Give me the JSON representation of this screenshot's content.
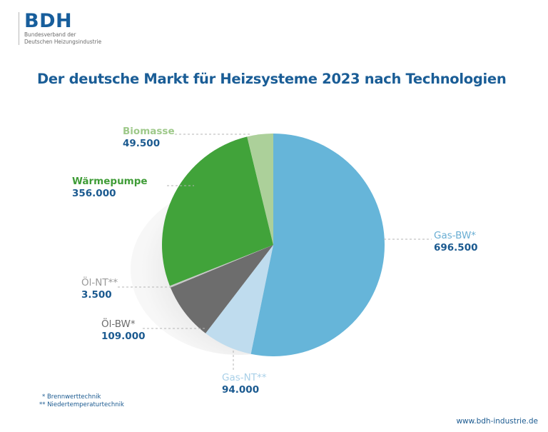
{
  "logo": {
    "mark": "BDH",
    "line1": "Bundesverband der",
    "line2": "Deutschen Heizungsindustrie"
  },
  "title": "Der deutsche Markt für Heizsysteme 2023 nach Technologien",
  "footnotes": {
    "f1": "* Brennwerttechnik",
    "f2": "** Niedertemperaturtechnik"
  },
  "url": "www.bdh-industrie.de",
  "labels": {
    "gas_bw": {
      "name": "Gas-BW*",
      "value": "696.500"
    },
    "gas_nt": {
      "name": "Gas-NT**",
      "value": "94.000"
    },
    "oel_bw": {
      "name": "Öl-BW*",
      "value": "109.000"
    },
    "oel_nt": {
      "name": "Öl-NT**",
      "value": "3.500"
    },
    "waermepumpe": {
      "name": "Wärmepumpe",
      "value": "356.000"
    },
    "biomasse": {
      "name": "Biomasse",
      "value": "49.500"
    }
  },
  "chart_data": {
    "type": "pie",
    "title": "Der deutsche Markt für Heizsysteme 2023 nach Technologien",
    "categories": [
      "Gas-BW*",
      "Gas-NT**",
      "Öl-BW*",
      "Öl-NT**",
      "Wärmepumpe",
      "Biomasse"
    ],
    "values": [
      696500,
      94000,
      109000,
      3500,
      356000,
      49500
    ],
    "colors": [
      "#66b5d9",
      "#bfdcee",
      "#6d6d6d",
      "#c8c8c8",
      "#41a33a",
      "#acd09a"
    ],
    "start_angle_deg": 0,
    "direction": "clockwise",
    "legend": "none (direct labels)",
    "notes": [
      "* Brennwerttechnik",
      "** Niedertemperaturtechnik"
    ]
  }
}
